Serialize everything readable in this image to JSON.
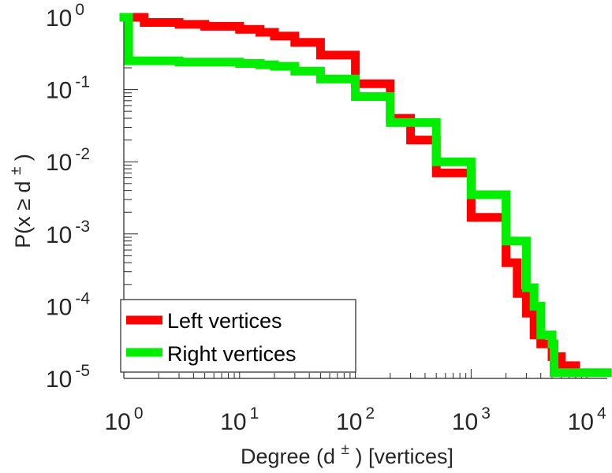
{
  "chart_data": {
    "type": "line",
    "xscale": "log",
    "yscale": "log",
    "xlim": [
      1,
      15000
    ],
    "ylim": [
      1e-05,
      1
    ],
    "grid": false,
    "xticks": [
      {
        "base": "10",
        "exp": "0"
      },
      {
        "base": "10",
        "exp": "1"
      },
      {
        "base": "10",
        "exp": "2"
      },
      {
        "base": "10",
        "exp": "3"
      },
      {
        "base": "10",
        "exp": "4"
      }
    ],
    "yticks": [
      {
        "base": "10",
        "exp": "0"
      },
      {
        "base": "10",
        "exp": "-1"
      },
      {
        "base": "10",
        "exp": "-2"
      },
      {
        "base": "10",
        "exp": "-3"
      },
      {
        "base": "10",
        "exp": "-4"
      },
      {
        "base": "10",
        "exp": "-5"
      }
    ],
    "xlabel": {
      "prefix": "Degree (d",
      "sup": "±",
      "suffix": ") [vertices]"
    },
    "ylabel": {
      "prefix": "P(x ≥ d",
      "sup": "±",
      "suffix": ")"
    },
    "legend": {
      "position": "bottom-left"
    },
    "series": [
      {
        "name": "Left vertices",
        "color": "#ff0000",
        "x": [
          1,
          1.5,
          3,
          5,
          10,
          15,
          20,
          30,
          50,
          100,
          200,
          300,
          500,
          1000,
          2000,
          2500,
          3000,
          3500,
          4000,
          5000,
          6000,
          8000
        ],
        "y": [
          1,
          0.85,
          0.8,
          0.75,
          0.68,
          0.62,
          0.55,
          0.45,
          0.3,
          0.12,
          0.04,
          0.02,
          0.007,
          0.0017,
          0.0004,
          0.00015,
          8e-05,
          4e-05,
          3e-05,
          2e-05,
          1.5e-05,
          1.2e-05
        ]
      },
      {
        "name": "Right vertices",
        "color": "#00ee00",
        "x": [
          1,
          1.1,
          3,
          10,
          15,
          20,
          30,
          50,
          100,
          200,
          500,
          1000,
          2000,
          3000,
          3500,
          4000,
          5000,
          5200,
          8000,
          15000
        ],
        "y": [
          1,
          0.25,
          0.24,
          0.23,
          0.22,
          0.21,
          0.18,
          0.14,
          0.08,
          0.035,
          0.01,
          0.0035,
          0.0008,
          0.00018,
          0.0001,
          4e-05,
          3e-05,
          1.2e-05,
          1.2e-05,
          1.2e-05
        ]
      }
    ]
  }
}
